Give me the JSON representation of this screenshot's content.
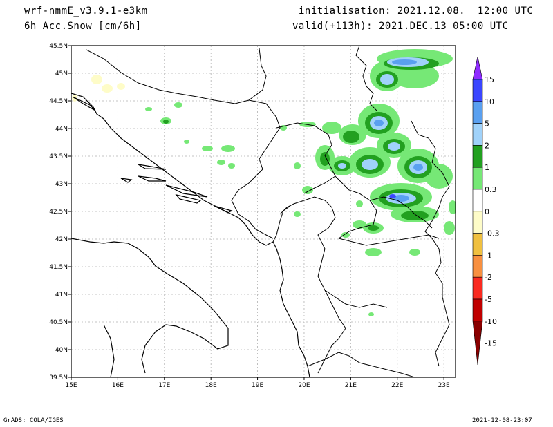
{
  "header": {
    "model": "wrf-nmmE_v3.9.1-e3km",
    "field": "6h Acc.Snow [cm/6h]",
    "init": "initialisation: 2021.12.08.  12:00 UTC",
    "valid": "valid(+113h): 2021.DEC.13 05:00 UTC"
  },
  "footer": {
    "left": "GrADS: COLA/IGES",
    "right": "2021-12-08-23:07"
  },
  "map": {
    "lon_range": [
      15,
      23.25
    ],
    "lat_range": [
      39.5,
      45.5
    ],
    "lon_ticks": [
      "15E",
      "16E",
      "17E",
      "18E",
      "19E",
      "20E",
      "21E",
      "22E",
      "23E"
    ],
    "lat_ticks": [
      "39.5N",
      "40N",
      "40.5N",
      "41N",
      "41.5N",
      "42N",
      "42.5N",
      "43N",
      "43.5N",
      "44N",
      "44.5N",
      "45N",
      "45.5N"
    ],
    "grid": true,
    "land_color": "#ffffff",
    "coast_color": "#000000"
  },
  "colorbar": {
    "labels": [
      "15",
      "10",
      "5",
      "2",
      "1",
      "0.3",
      "0",
      "-0.3",
      "-1",
      "-2",
      "-5",
      "-10",
      "-15"
    ],
    "colors": [
      "#8f2cff",
      "#3a46ff",
      "#5aa0f0",
      "#a0d2fa",
      "#22a020",
      "#76e876",
      "#ffffff",
      "#fefcc8",
      "#f0c040",
      "#f89040",
      "#fa2a20",
      "#c00000",
      "#8a0000"
    ]
  }
}
